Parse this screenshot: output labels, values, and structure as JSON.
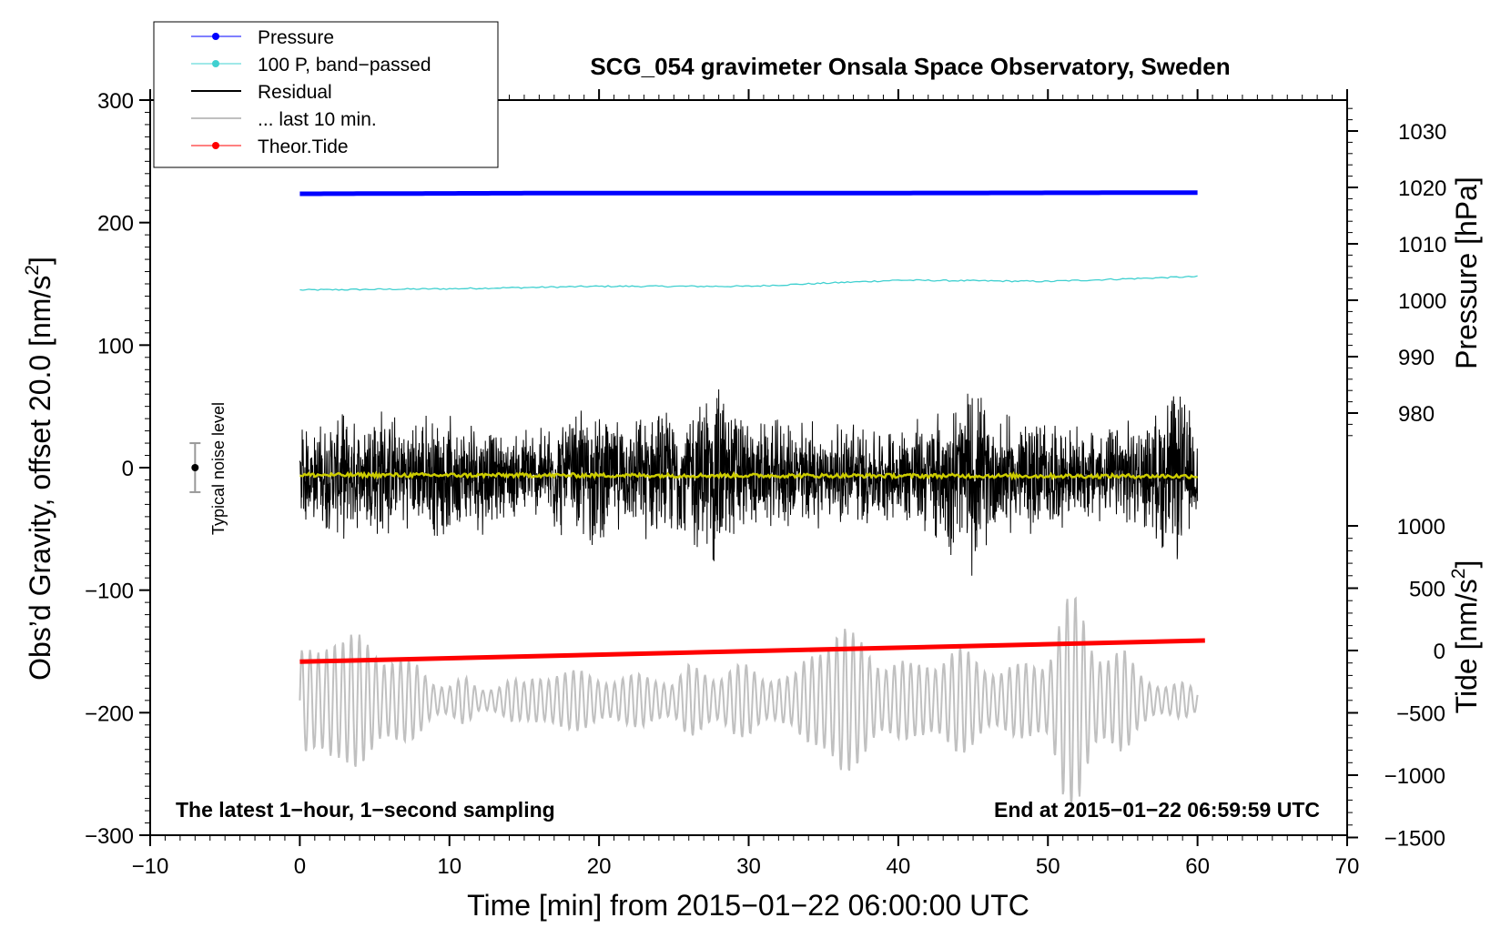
{
  "chart_data": {
    "type": "line",
    "title": "SCG_054 gravimeter Onsala Space Observatory, Sweden",
    "xlabel": "Time [min] from 2015−01−22 06:00:00 UTC",
    "xlim": [
      -10,
      70
    ],
    "x_ticks": [
      -10,
      0,
      10,
      20,
      30,
      40,
      50,
      60,
      70
    ],
    "x_tick_labels": [
      "−10",
      "0",
      "10",
      "20",
      "30",
      "40",
      "50",
      "60",
      "70"
    ],
    "ylabel_left": "Obs'd Gravity, offset 20.0 [nm/s²]",
    "ylabel_left_parts": [
      "Obs’d Gravity, offset 20.0 [nm/s",
      "2",
      "]"
    ],
    "ylim_left": [
      -300,
      300
    ],
    "y_left_ticks": [
      300,
      200,
      100,
      0,
      -100,
      -200,
      -300
    ],
    "y_left_tick_labels": [
      "300",
      "200",
      "100",
      "0",
      "−100",
      "−200",
      "−300"
    ],
    "ylabel_pressure": "Pressure [hPa]",
    "pressure_ticks": [
      980,
      990,
      1000,
      1010,
      1020,
      1030
    ],
    "pressure_tick_labels": [
      "980",
      "990",
      "1000",
      "1010",
      "1020",
      "1030"
    ],
    "ylabel_tide": "Tide [nm/s²]",
    "ylabel_tide_parts": [
      "Tide [nm/s",
      "2",
      "]"
    ],
    "tide_ticks": [
      1000,
      500,
      0,
      -500,
      -1000,
      -1500
    ],
    "tide_tick_labels": [
      "1000",
      "500",
      "0",
      "−500",
      "−1000",
      "−1500"
    ],
    "legend": {
      "placement": "top-left",
      "entries": [
        {
          "label": "Pressure",
          "color": "#0000ff",
          "marker": true
        },
        {
          "label": "100 P, band−passed",
          "color": "#40d0d0",
          "marker": true
        },
        {
          "label": "Residual",
          "color": "#000000",
          "marker": false
        },
        {
          "label": "... last 10 min.",
          "color": "#c0c0c0",
          "marker": false
        },
        {
          "label": "Theor.Tide",
          "color": "#ff0000",
          "marker": true
        }
      ]
    },
    "series": [
      {
        "name": "Pressure",
        "axis": "left",
        "color": "#0000ff",
        "x": [
          0,
          15,
          30,
          45,
          60
        ],
        "y": [
          223.5,
          224,
          224,
          224.2,
          224.5
        ]
      },
      {
        "name": "100 P, band-passed",
        "axis": "left",
        "color": "#40d0d0",
        "x": [
          0,
          10,
          20,
          30,
          40,
          50,
          60
        ],
        "y": [
          145,
          146,
          148,
          148,
          153,
          152,
          156
        ]
      },
      {
        "name": "Residual",
        "axis": "left",
        "color": "#000000",
        "x_range": [
          0,
          60
        ],
        "center": -6,
        "envelope": [
          [
            0,
            45
          ],
          [
            1,
            40
          ],
          [
            2,
            50
          ],
          [
            3,
            55
          ],
          [
            4,
            45
          ],
          [
            5,
            70
          ],
          [
            6,
            55
          ],
          [
            7,
            45
          ],
          [
            8,
            50
          ],
          [
            9,
            60
          ],
          [
            10,
            50
          ],
          [
            11,
            45
          ],
          [
            12,
            55
          ],
          [
            13,
            40
          ],
          [
            14,
            35
          ],
          [
            15,
            45
          ],
          [
            16,
            40
          ],
          [
            17,
            55
          ],
          [
            18,
            50
          ],
          [
            19,
            65
          ],
          [
            20,
            60
          ],
          [
            21,
            50
          ],
          [
            22,
            45
          ],
          [
            23,
            55
          ],
          [
            24,
            60
          ],
          [
            25,
            55
          ],
          [
            26,
            60
          ],
          [
            27,
            75
          ],
          [
            28,
            90
          ],
          [
            29,
            65
          ],
          [
            30,
            50
          ],
          [
            31,
            45
          ],
          [
            32,
            50
          ],
          [
            33,
            45
          ],
          [
            34,
            55
          ],
          [
            35,
            40
          ],
          [
            36,
            45
          ],
          [
            37,
            50
          ],
          [
            38,
            45
          ],
          [
            39,
            40
          ],
          [
            40,
            45
          ],
          [
            41,
            50
          ],
          [
            42,
            55
          ],
          [
            43,
            60
          ],
          [
            44,
            75
          ],
          [
            45,
            85
          ],
          [
            46,
            60
          ],
          [
            47,
            55
          ],
          [
            48,
            50
          ],
          [
            49,
            55
          ],
          [
            50,
            50
          ],
          [
            51,
            45
          ],
          [
            52,
            40
          ],
          [
            53,
            45
          ],
          [
            54,
            40
          ],
          [
            55,
            50
          ],
          [
            56,
            45
          ],
          [
            57,
            50
          ],
          [
            58,
            80
          ],
          [
            59,
            75
          ],
          [
            60,
            40
          ]
        ]
      },
      {
        "name": "Residual (smoothed)",
        "axis": "left",
        "color": "#cccc00",
        "x": [
          0,
          60
        ],
        "y": [
          -6,
          -7
        ]
      },
      {
        "name": "... last 10 min.",
        "axis": "left",
        "color": "#c0c0c0",
        "x_range": [
          0,
          60
        ],
        "center": -190,
        "envelope": [
          [
            0,
            40
          ],
          [
            1,
            50
          ],
          [
            2,
            75
          ],
          [
            3,
            55
          ],
          [
            4,
            55
          ],
          [
            5,
            55
          ],
          [
            6,
            45
          ],
          [
            7,
            35
          ],
          [
            8,
            30
          ],
          [
            9,
            20
          ],
          [
            10,
            15
          ],
          [
            11,
            20
          ],
          [
            12,
            10
          ],
          [
            13,
            15
          ],
          [
            14,
            20
          ],
          [
            15,
            15
          ],
          [
            16,
            25
          ],
          [
            17,
            30
          ],
          [
            18,
            25
          ],
          [
            19,
            25
          ],
          [
            20,
            25
          ],
          [
            21,
            20
          ],
          [
            22,
            20
          ],
          [
            23,
            25
          ],
          [
            24,
            25
          ],
          [
            25,
            15
          ],
          [
            26,
            30
          ],
          [
            27,
            30
          ],
          [
            28,
            25
          ],
          [
            29,
            30
          ],
          [
            30,
            30
          ],
          [
            31,
            25
          ],
          [
            32,
            25
          ],
          [
            33,
            20
          ],
          [
            34,
            40
          ],
          [
            35,
            65
          ],
          [
            36,
            70
          ],
          [
            37,
            55
          ],
          [
            38,
            50
          ],
          [
            39,
            40
          ],
          [
            40,
            35
          ],
          [
            41,
            30
          ],
          [
            42,
            40
          ],
          [
            43,
            45
          ],
          [
            44,
            45
          ],
          [
            45,
            40
          ],
          [
            46,
            35
          ],
          [
            47,
            30
          ],
          [
            48,
            30
          ],
          [
            49,
            35
          ],
          [
            50,
            45
          ],
          [
            51,
            90
          ],
          [
            52,
            85
          ],
          [
            53,
            55
          ],
          [
            54,
            50
          ],
          [
            55,
            45
          ],
          [
            56,
            25
          ],
          [
            57,
            20
          ],
          [
            58,
            15
          ],
          [
            59,
            15
          ],
          [
            60,
            10
          ]
        ]
      },
      {
        "name": "Theor.Tide",
        "axis": "tide",
        "color": "#ff0000",
        "x": [
          0,
          60.5
        ],
        "y": [
          -90,
          80
        ]
      }
    ],
    "noise_indicator": {
      "label": "Typical noise level",
      "x": -7,
      "y": 0,
      "half_range": 20
    },
    "annotations": [
      {
        "text": "The latest 1−hour, 1−second sampling",
        "position": "bottom-left"
      },
      {
        "text": "End at 2015−01−22 06:59:59 UTC",
        "position": "bottom-right"
      }
    ]
  }
}
